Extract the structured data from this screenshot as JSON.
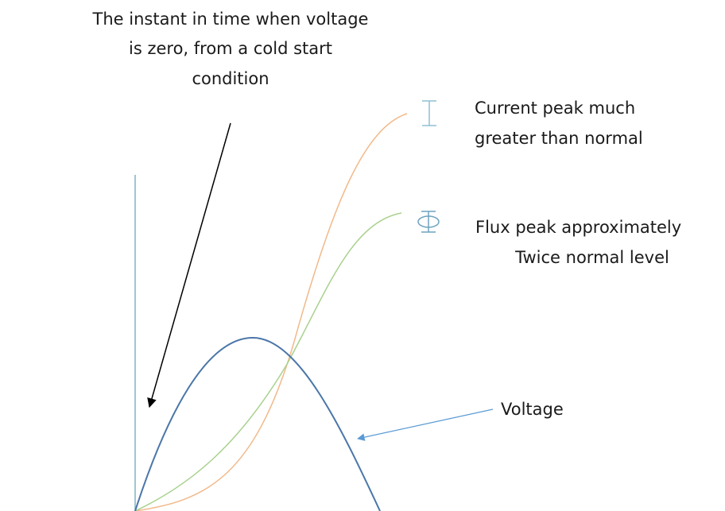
{
  "annotations": {
    "zero_instant": [
      "The instant in time when voltage",
      "is zero, from a cold start",
      "condition"
    ],
    "current": [
      "Current peak much",
      "greater than normal"
    ],
    "flux": [
      "Flux peak approximately",
      "Twice normal level"
    ],
    "voltage": "Voltage"
  }
}
